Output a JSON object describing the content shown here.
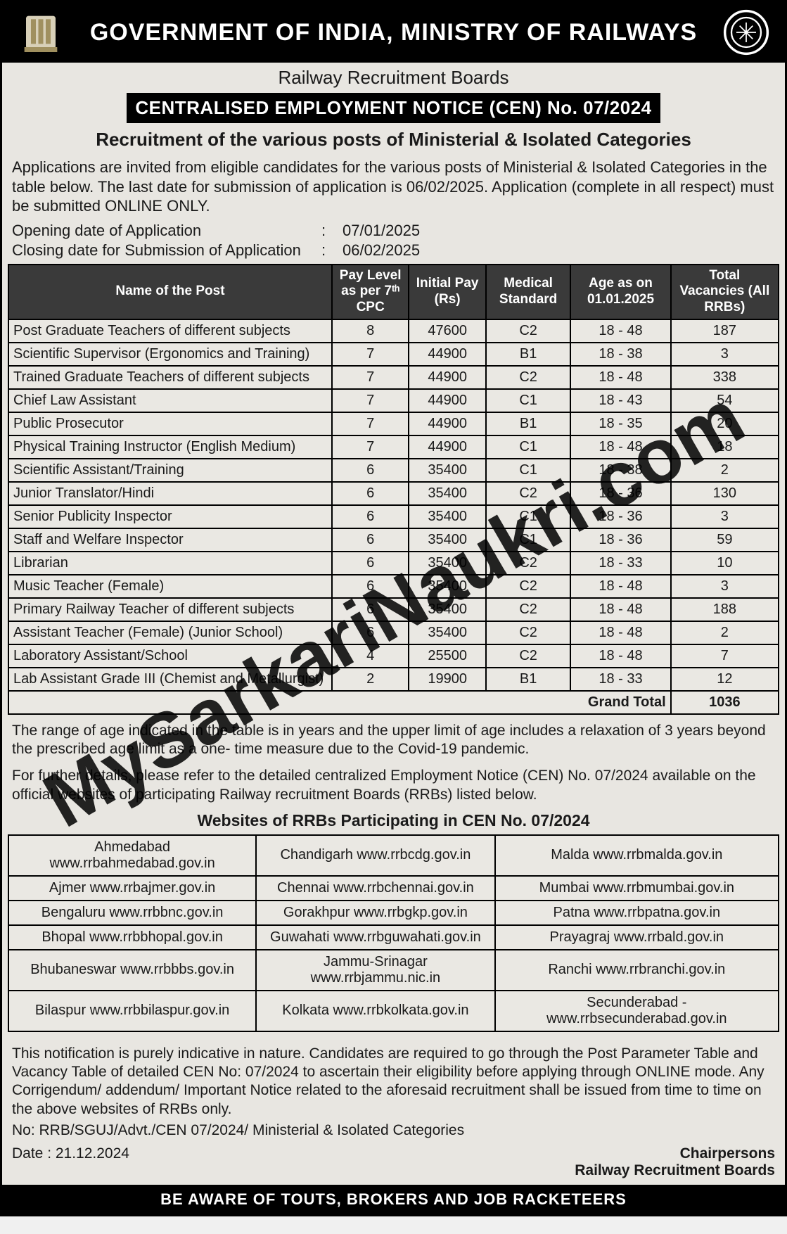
{
  "header": {
    "main_title": "GOVERNMENT OF INDIA, MINISTRY OF RAILWAYS",
    "sub_title": "Railway Recruitment Boards",
    "cen_bar": "CENTRALISED EMPLOYMENT NOTICE (CEN) No. 07/2024",
    "recruitment_title": "Recruitment of the various posts of Ministerial & Isolated Categories"
  },
  "intro_text": "Applications are invited from eligible candidates for the various posts of Ministerial & Isolated Categories in the table below. The last date for submission of application is 06/02/2025. Application (complete in all respect) must be submitted ONLINE ONLY.",
  "dates": {
    "opening_label": "Opening date of Application",
    "opening_value": "07/01/2025",
    "closing_label": "Closing date for Submission of Application",
    "closing_value": "06/02/2025"
  },
  "posts_table": {
    "columns": [
      "Name of the Post",
      "Pay Level as per 7ᵗʰ CPC",
      "Initial Pay (Rs)",
      "Medical Standard",
      "Age as on 01.01.2025",
      "Total Vacancies (All RRBs)"
    ],
    "col_widths": [
      "42%",
      "10%",
      "10%",
      "11%",
      "13%",
      "14%"
    ],
    "rows": [
      [
        "Post Graduate Teachers of different subjects",
        "8",
        "47600",
        "C2",
        "18 - 48",
        "187"
      ],
      [
        "Scientific Supervisor (Ergonomics and Training)",
        "7",
        "44900",
        "B1",
        "18 - 38",
        "3"
      ],
      [
        "Trained Graduate Teachers of different subjects",
        "7",
        "44900",
        "C2",
        "18 - 48",
        "338"
      ],
      [
        "Chief Law Assistant",
        "7",
        "44900",
        "C1",
        "18 - 43",
        "54"
      ],
      [
        "Public Prosecutor",
        "7",
        "44900",
        "B1",
        "18 - 35",
        "20"
      ],
      [
        "Physical Training Instructor (English Medium)",
        "7",
        "44900",
        "C1",
        "18 - 48",
        "18"
      ],
      [
        "Scientific Assistant/Training",
        "6",
        "35400",
        "C1",
        "18 - 38",
        "2"
      ],
      [
        "Junior Translator/Hindi",
        "6",
        "35400",
        "C2",
        "18 - 36",
        "130"
      ],
      [
        "Senior Publicity Inspector",
        "6",
        "35400",
        "C1",
        "18 - 36",
        "3"
      ],
      [
        "Staff and Welfare Inspector",
        "6",
        "35400",
        "C1",
        "18 - 36",
        "59"
      ],
      [
        "Librarian",
        "6",
        "35400",
        "C2",
        "18 - 33",
        "10"
      ],
      [
        "Music Teacher (Female)",
        "6",
        "35400",
        "C2",
        "18 - 48",
        "3"
      ],
      [
        "Primary Railway Teacher of different subjects",
        "6",
        "35400",
        "C2",
        "18 - 48",
        "188"
      ],
      [
        "Assistant Teacher (Female) (Junior School)",
        "6",
        "35400",
        "C2",
        "18 - 48",
        "2"
      ],
      [
        "Laboratory Assistant/School",
        "4",
        "25500",
        "C2",
        "18 - 48",
        "7"
      ],
      [
        "Lab Assistant Grade III (Chemist and Metallurgist)",
        "2",
        "19900",
        "B1",
        "18 - 33",
        "12"
      ]
    ],
    "grand_total_label": "Grand Total",
    "grand_total_value": "1036"
  },
  "age_note": "The range of age indicated in the table is in years and the upper limit of age includes a relaxation of 3 years beyond the prescribed age limit as a one- time measure due to the Covid-19 pandemic.",
  "further_note": "For further details, please refer to the detailed centralized Employment Notice (CEN) No. 07/2024 available on the official websites of participating Railway recruitment Boards (RRBs) listed below.",
  "rrb_heading": "Websites of RRBs Participating in CEN No. 07/2024",
  "rrb_table": {
    "rows": [
      [
        "Ahmedabad www.rrbahmedabad.gov.in",
        "Chandigarh www.rrbcdg.gov.in",
        "Malda www.rrbmalda.gov.in"
      ],
      [
        "Ajmer www.rrbajmer.gov.in",
        "Chennai www.rrbchennai.gov.in",
        "Mumbai www.rrbmumbai.gov.in"
      ],
      [
        "Bengaluru www.rrbbnc.gov.in",
        "Gorakhpur www.rrbgkp.gov.in",
        "Patna www.rrbpatna.gov.in"
      ],
      [
        "Bhopal www.rrbbhopal.gov.in",
        "Guwahati www.rrbguwahati.gov.in",
        "Prayagraj www.rrbald.gov.in"
      ],
      [
        "Bhubaneswar www.rrbbbs.gov.in",
        "Jammu-Srinagar www.rrbjammu.nic.in",
        "Ranchi www.rrbranchi.gov.in"
      ],
      [
        "Bilaspur www.rrbbilaspur.gov.in",
        "Kolkata www.rrbkolkata.gov.in",
        "Secunderabad - www.rrbsecunderabad.gov.in"
      ]
    ]
  },
  "disclaimer": "This notification is purely indicative in nature. Candidates are required to go through the Post Parameter Table and Vacancy Table of detailed CEN No: 07/2024 to ascertain their eligibility before applying through ONLINE mode. Any Corrigendum/ addendum/ Important Notice related to the aforesaid recruitment shall be issued from time to time on the above websites of RRBs only.",
  "ref_no": "No: RRB/SGUJ/Advt./CEN 07/2024/ Ministerial & Isolated Categories",
  "date_line": "Date : 21.12.2024",
  "sign1": "Chairpersons",
  "sign2": "Railway Recruitment Boards",
  "bottom_warning": "BE AWARE OF TOUTS, BROKERS AND JOB RACKETEERS",
  "watermark": "MySarkariNaukri.com",
  "colors": {
    "page_bg": "#e8e6e1",
    "header_bg": "#000000",
    "header_fg": "#ffffff",
    "table_header_bg": "#3a3a3a",
    "border": "#000000"
  }
}
